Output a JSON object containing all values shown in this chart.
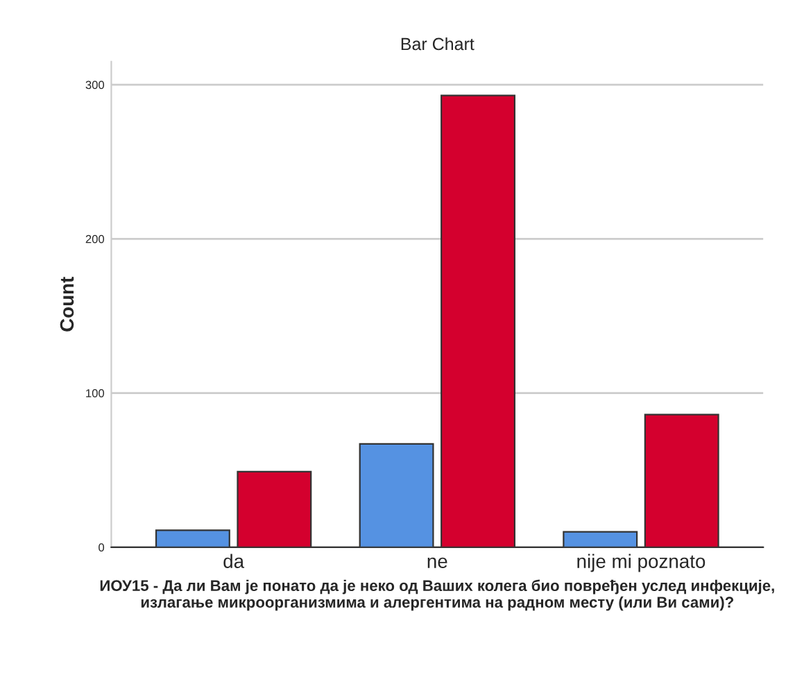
{
  "chart_data": {
    "type": "bar",
    "title": "Bar Chart",
    "xlabel": "ИОУ15 - Да ли Вам је понато да је неко од Ваших колега био повређен услед инфекције, излагање микроорганизмима и алергентима на радном месту (или Ви сами)?",
    "ylabel": "Count",
    "categories": [
      "da",
      "ne",
      "nije mi poznato"
    ],
    "series": [
      {
        "color": "#5592e2",
        "values": [
          11,
          67,
          10
        ]
      },
      {
        "color": "#d4002e",
        "values": [
          49,
          293,
          86
        ]
      }
    ],
    "ylim": [
      0,
      315
    ],
    "yticks": [
      0,
      100,
      200,
      300
    ],
    "grid": "y"
  }
}
